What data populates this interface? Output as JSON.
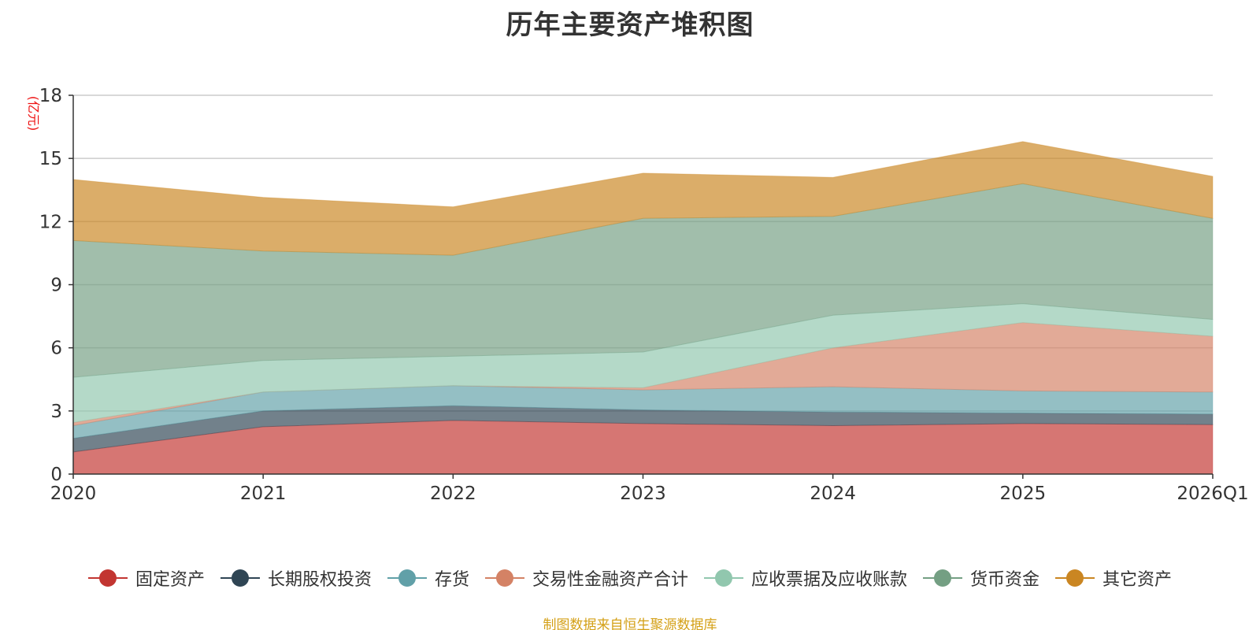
{
  "chart_data": {
    "type": "area",
    "stacked": true,
    "title": "历年主要资产堆积图",
    "unit_label": "(亿元)",
    "categories": [
      "2020",
      "2021",
      "2022",
      "2023",
      "2024",
      "2025",
      "2026Q1"
    ],
    "ylim": [
      0,
      18
    ],
    "yticks": [
      0,
      3,
      6,
      9,
      12,
      15,
      18
    ],
    "grid": true,
    "legend_position": "bottom",
    "series": [
      {
        "name": "固定资产",
        "color": "#c23531",
        "values": [
          1.05,
          2.25,
          2.55,
          2.4,
          2.3,
          2.4,
          2.35
        ]
      },
      {
        "name": "长期股权投资",
        "color": "#2f4554",
        "values": [
          0.65,
          0.75,
          0.7,
          0.65,
          0.65,
          0.5,
          0.5
        ]
      },
      {
        "name": "存货",
        "color": "#61a0a8",
        "values": [
          0.6,
          0.9,
          0.95,
          0.95,
          1.2,
          1.05,
          1.05
        ]
      },
      {
        "name": "交易性金融资产合计",
        "color": "#d48265",
        "values": [
          0.15,
          0.0,
          0.0,
          0.1,
          1.85,
          3.25,
          2.65
        ]
      },
      {
        "name": "应收票据及应收账款",
        "color": "#91c7ae",
        "values": [
          2.15,
          1.5,
          1.4,
          1.7,
          1.55,
          0.9,
          0.8
        ]
      },
      {
        "name": "货币资金",
        "color": "#749f83",
        "values": [
          6.5,
          5.2,
          4.8,
          6.35,
          4.7,
          5.7,
          4.8
        ]
      },
      {
        "name": "其它资产",
        "color": "#ca8622",
        "values": [
          2.9,
          2.55,
          2.3,
          2.15,
          1.85,
          2.0,
          2.0
        ]
      }
    ],
    "source": "制图数据来自恒生聚源数据库"
  }
}
